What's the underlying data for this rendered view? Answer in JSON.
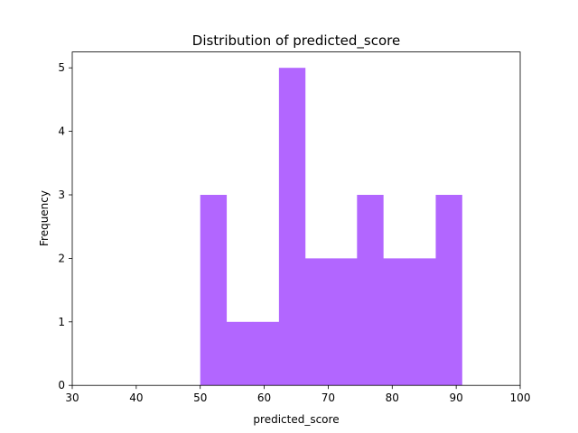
{
  "chart_data": {
    "type": "bar",
    "title": "Distribution of  predicted_score",
    "xlabel": "predicted_score",
    "ylabel": "Frequency",
    "xlim": [
      30,
      100
    ],
    "ylim": [
      0,
      5.25
    ],
    "xticks": [
      30,
      40,
      50,
      60,
      70,
      80,
      90,
      100
    ],
    "yticks": [
      0,
      1,
      2,
      3,
      4,
      5
    ],
    "bar_color": "#b266ff",
    "grid": false,
    "bins": [
      {
        "x0": 50.0,
        "x1": 54.1,
        "count": 3
      },
      {
        "x0": 54.1,
        "x1": 58.2,
        "count": 1
      },
      {
        "x0": 58.2,
        "x1": 62.3,
        "count": 1
      },
      {
        "x0": 62.3,
        "x1": 66.4,
        "count": 5
      },
      {
        "x0": 66.4,
        "x1": 70.5,
        "count": 2
      },
      {
        "x0": 70.5,
        "x1": 74.5,
        "count": 2
      },
      {
        "x0": 74.5,
        "x1": 78.6,
        "count": 3
      },
      {
        "x0": 78.6,
        "x1": 82.7,
        "count": 2
      },
      {
        "x0": 82.7,
        "x1": 86.8,
        "count": 2
      },
      {
        "x0": 86.8,
        "x1": 90.9,
        "count": 3
      }
    ]
  }
}
